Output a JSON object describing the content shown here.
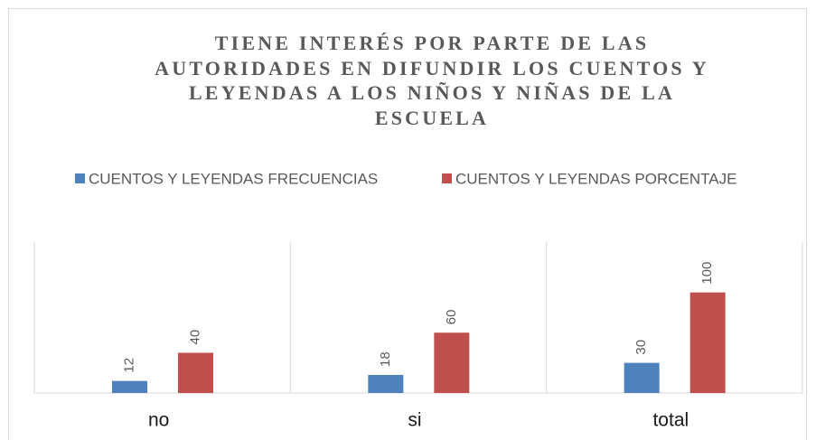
{
  "chart_data": {
    "type": "bar",
    "title": "TIENE INTERÉS POR PARTE DE LAS AUTORIDADES EN DIFUNDIR LOS CUENTOS Y LEYENDAS A LOS NIÑOS Y NIÑAS DE LA ESCUELA",
    "categories": [
      "no",
      "si",
      "total"
    ],
    "series": [
      {
        "name": "CUENTOS Y LEYENDAS FRECUENCIAS",
        "color": "#4f81bd",
        "values": [
          12,
          18,
          30
        ]
      },
      {
        "name": "CUENTOS Y LEYENDAS PORCENTAJE",
        "color": "#c0504d",
        "values": [
          40,
          60,
          100
        ]
      }
    ],
    "ylim": [
      0,
      150
    ],
    "legend": "top",
    "grid": false
  }
}
